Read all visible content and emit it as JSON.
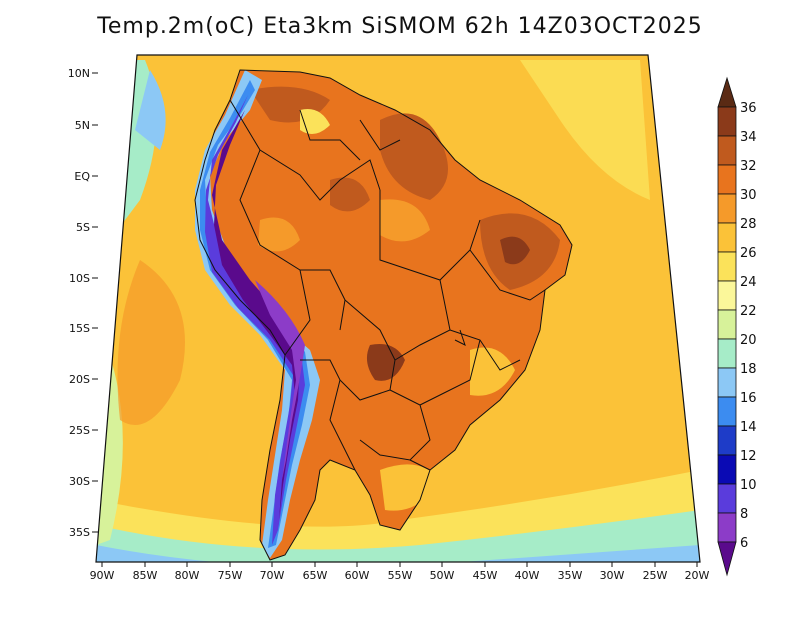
{
  "title": "Temp.2m(oC) Eta3km SiSMOM 62h 14Z03OCT2025",
  "lat_labels": [
    "10N",
    "5N",
    "EQ",
    "5S",
    "10S",
    "15S",
    "20S",
    "25S",
    "30S",
    "35S"
  ],
  "lon_labels": [
    "90W",
    "85W",
    "80W",
    "75W",
    "70W",
    "65W",
    "60W",
    "55W",
    "50W",
    "45W",
    "40W",
    "35W",
    "30W",
    "25W",
    "20W"
  ],
  "colorbar": {
    "labels": [
      "36",
      "34",
      "32",
      "30",
      "28",
      "26",
      "24",
      "22",
      "20",
      "18",
      "16",
      "14",
      "12",
      "10",
      "8",
      "6"
    ],
    "colors": [
      "#5a2a14",
      "#8b3a1a",
      "#c05a1e",
      "#e8741e",
      "#f59a2a",
      "#fbc238",
      "#fbe25a",
      "#fbf79a",
      "#d7f29a",
      "#a6ecc8",
      "#8cc8f5",
      "#3c8cf0",
      "#1e3cc8",
      "#0a0ab4",
      "#5a3cdc",
      "#8c3cc8",
      "#5a0a8c"
    ]
  }
}
